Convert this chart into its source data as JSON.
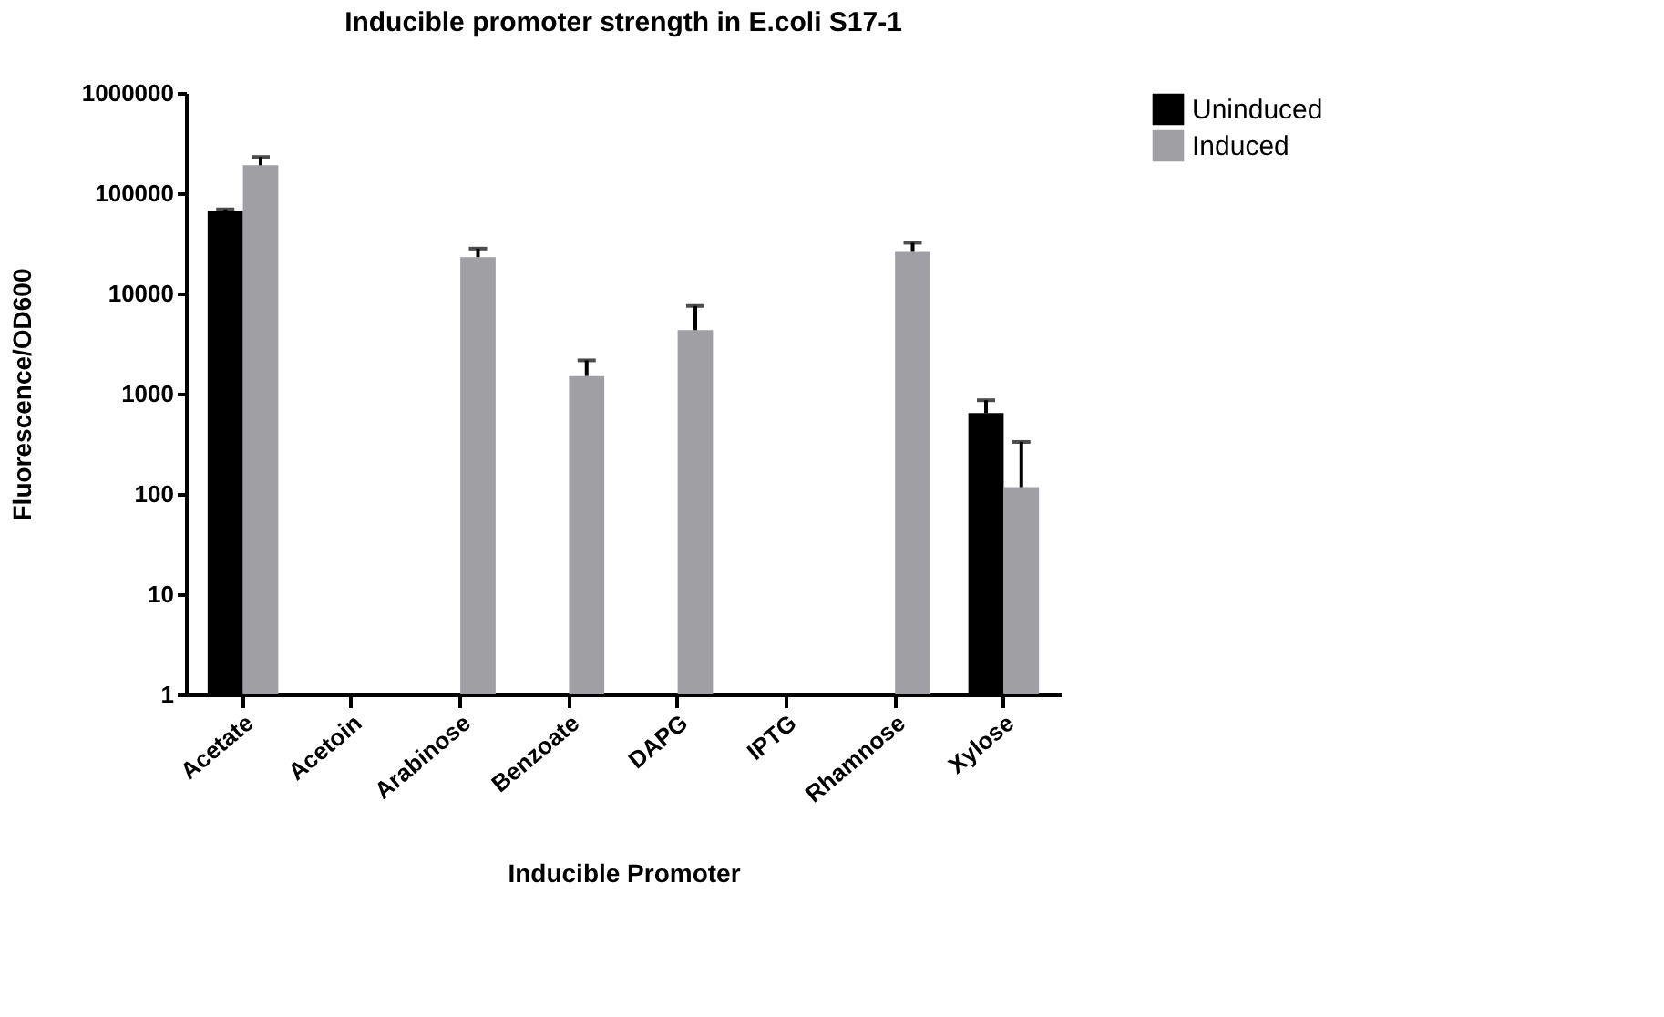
{
  "chart_data": {
    "type": "bar",
    "title": "Inducible promoter strength in E.coli S17-1",
    "xlabel": "Inducible Promoter",
    "ylabel": "Fluorescence/OD600",
    "categories": [
      "Acetate",
      "Acetoin",
      "Arabinose",
      "Benzoate",
      "DAPG",
      "IPTG",
      "Rhamnose",
      "Xylose"
    ],
    "series": [
      {
        "name": "Uninduced",
        "color": "#000000",
        "values": [
          67000,
          null,
          null,
          null,
          null,
          null,
          null,
          640
        ],
        "errors": [
          [
            67000,
            69000
          ],
          null,
          null,
          null,
          null,
          null,
          null,
          [
            640,
            860
          ]
        ]
      },
      {
        "name": "Induced",
        "color": "#a0a0a4",
        "values": [
          190000,
          null,
          23000,
          1500,
          4300,
          null,
          26500,
          117
        ],
        "errors": [
          [
            190000,
            230000
          ],
          null,
          [
            23000,
            28000
          ],
          [
            1500,
            2150
          ],
          [
            4300,
            7500
          ],
          null,
          [
            26500,
            32000
          ],
          [
            117,
            330
          ]
        ]
      }
    ],
    "log": true,
    "ylim": [
      1,
      1000000
    ],
    "yticks": [
      1,
      10,
      100,
      1000,
      10000,
      100000,
      1000000
    ],
    "grid": false,
    "legend": "top right"
  }
}
